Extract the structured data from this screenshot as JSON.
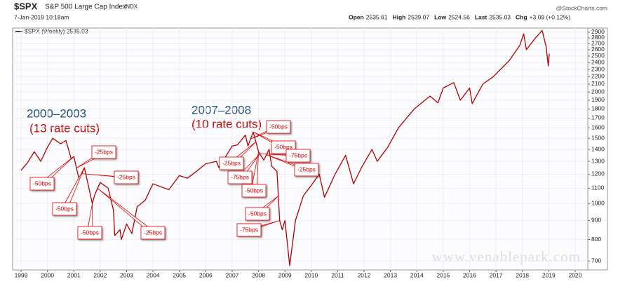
{
  "chart_data": {
    "type": "line",
    "symbol": "$SPX",
    "title": "S&P 500 Large Cap Index",
    "exchange": "INDX",
    "date": "7-Jan-2019 10:18am",
    "source": "@StockCharts.com",
    "quote": [
      {
        "label": "Open",
        "value": 2535.61
      },
      {
        "label": "High",
        "value": 2539.07
      },
      {
        "label": "Low",
        "value": 2524.56
      },
      {
        "label": "Last",
        "value": 2535.03
      },
      {
        "label": "Chg",
        "value": 3.09,
        "value_label": "+3.09 (+0.12%)"
      }
    ],
    "watermark": "www.venablepark.com",
    "periods": [
      {
        "title": "2000–2003",
        "subtitle": "(13 rate cuts)"
      },
      {
        "title": "2007–2008",
        "subtitle": "(10 rate cuts)"
      }
    ],
    "log": true,
    "grid": true,
    "xlim": [
      1998.68,
      2020.48
    ],
    "xticks": [
      1999,
      2000,
      2001,
      2002,
      2003,
      2004,
      2005,
      2006,
      2007,
      2008,
      2009,
      2010,
      2011,
      2012,
      2013,
      2014,
      2015,
      2016,
      2017,
      2018,
      2019,
      2020
    ],
    "ylim": [
      662,
      2975
    ],
    "yticks": [
      700,
      800,
      900,
      1000,
      1100,
      1200,
      1300,
      1400,
      1500,
      1600,
      1700,
      1800,
      1900,
      2000,
      2100,
      2200,
      2300,
      2400,
      2500,
      2600,
      2700,
      2800,
      2900
    ],
    "x": [
      1999.0,
      1999.25,
      1999.5,
      1999.75,
      2000.0,
      2000.2,
      2000.5,
      2000.7,
      2000.9,
      2001.0,
      2001.2,
      2001.4,
      2001.7,
      2001.8,
      2002.0,
      2002.3,
      2002.5,
      2002.55,
      2002.75,
      2002.8,
      2003.0,
      2003.2,
      2003.4,
      2003.7,
      2004.0,
      2004.3,
      2004.6,
      2005.0,
      2005.3,
      2005.7,
      2006.0,
      2006.4,
      2006.5,
      2007.0,
      2007.2,
      2007.5,
      2007.6,
      2007.8,
      2008.0,
      2008.2,
      2008.4,
      2008.5,
      2008.7,
      2008.8,
      2008.9,
      2009.0,
      2009.18,
      2009.4,
      2009.7,
      2010.0,
      2010.3,
      2010.5,
      2010.9,
      2011.3,
      2011.6,
      2011.9,
      2012.3,
      2012.5,
      2012.9,
      2013.3,
      2013.9,
      2014.5,
      2014.8,
      2015.0,
      2015.4,
      2015.65,
      2016.0,
      2016.1,
      2016.5,
      2016.9,
      2017.5,
      2017.9,
      2018.05,
      2018.15,
      2018.5,
      2018.75,
      2018.9,
      2018.98,
      2019.02
    ],
    "series": [
      {
        "name": "$SPX (Weekly) 2535.03",
        "color": "#b00000",
        "values": [
          1230,
          1290,
          1380,
          1300,
          1420,
          1500,
          1450,
          1480,
          1320,
          1340,
          1160,
          1250,
          1000,
          1060,
          1140,
          1100,
          960,
          820,
          850,
          800,
          880,
          830,
          980,
          1020,
          1130,
          1110,
          1090,
          1190,
          1170,
          1230,
          1280,
          1300,
          1250,
          1430,
          1440,
          1530,
          1430,
          1560,
          1380,
          1310,
          1400,
          1260,
          1220,
          900,
          850,
          900,
          680,
          900,
          1050,
          1120,
          1200,
          1040,
          1200,
          1350,
          1130,
          1250,
          1400,
          1300,
          1420,
          1600,
          1800,
          1950,
          1870,
          2050,
          2120,
          1900,
          2050,
          1860,
          2100,
          2200,
          2430,
          2670,
          2870,
          2600,
          2800,
          2930,
          2650,
          2350,
          2535
        ]
      }
    ],
    "annotations": [
      {
        "text": "-50bps",
        "x": 2001.0
      },
      {
        "text": "-25bps",
        "x": 2001.1
      },
      {
        "text": "-25bps",
        "x": 2001.3
      },
      {
        "text": "-50bps",
        "x": 2001.4
      },
      {
        "text": "-50bps",
        "x": 2001.7
      },
      {
        "text": "-25bps",
        "x": 2001.9
      },
      {
        "text": "-50bps",
        "x": 2007.7
      },
      {
        "text": "-50bps",
        "x": 2007.8
      },
      {
        "text": "-75bps",
        "x": 2008.05
      },
      {
        "text": "-25bps",
        "x": 2007.9
      },
      {
        "text": "-75bps",
        "x": 2008.05
      },
      {
        "text": "-25bps",
        "x": 2008.3
      },
      {
        "text": "-50bps",
        "x": 2008.0
      },
      {
        "text": "-50bps",
        "x": 2008.75
      },
      {
        "text": "-75bps",
        "x": 2008.8
      }
    ]
  }
}
